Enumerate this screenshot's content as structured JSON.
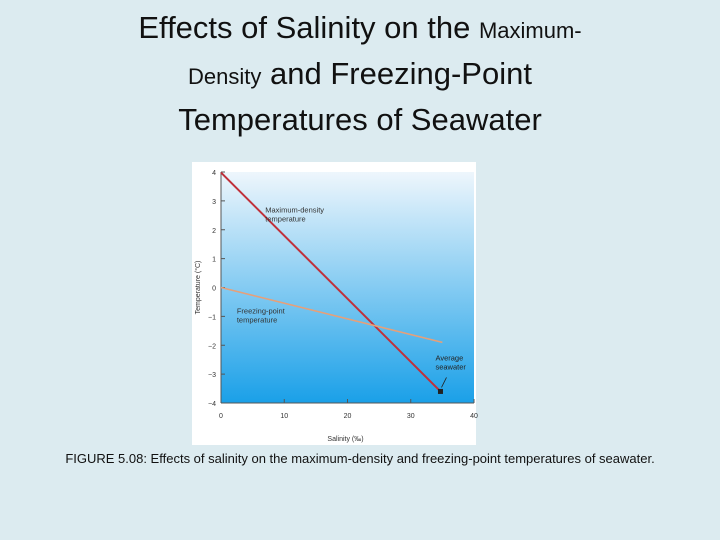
{
  "slide": {
    "title": {
      "line1": "Effects of Salinity on the ",
      "line1_small": "Maximum-",
      "line2_small": "Density",
      "line2": " and Freezing-Point",
      "line3": "Temperatures of Seawater"
    },
    "caption": "FIGURE 5.08: Effects of salinity on the maximum-density and freezing-point temperatures of seawater."
  },
  "chart_data": {
    "type": "line",
    "title": "",
    "xlabel": "Salinity (‰)",
    "ylabel": "Temperature (°C)",
    "xlim": [
      0,
      40
    ],
    "ylim": [
      -4,
      4
    ],
    "x_ticks": [
      0,
      10,
      20,
      30,
      40
    ],
    "y_ticks": [
      4,
      3,
      2,
      1,
      0,
      -1,
      -2,
      -3,
      -4
    ],
    "series": [
      {
        "name": "Maximum-density temperature",
        "label_lines": [
          "Maximum-density",
          "temperature"
        ],
        "color": "#c0303a",
        "points": [
          [
            0,
            3.98
          ],
          [
            34.7,
            -3.6
          ]
        ]
      },
      {
        "name": "Freezing-point temperature",
        "label_lines": [
          "Freezing-point",
          "temperature"
        ],
        "color": "#e6a07a",
        "points": [
          [
            0,
            0
          ],
          [
            35,
            -1.9
          ]
        ]
      }
    ],
    "annotations": [
      {
        "label_lines": [
          "Average",
          "seawater"
        ],
        "x": 34.7,
        "y": -3.6
      }
    ],
    "gradient_colors": [
      "#eef6fc",
      "#1aa0e8"
    ],
    "axis_color": "#555555"
  }
}
